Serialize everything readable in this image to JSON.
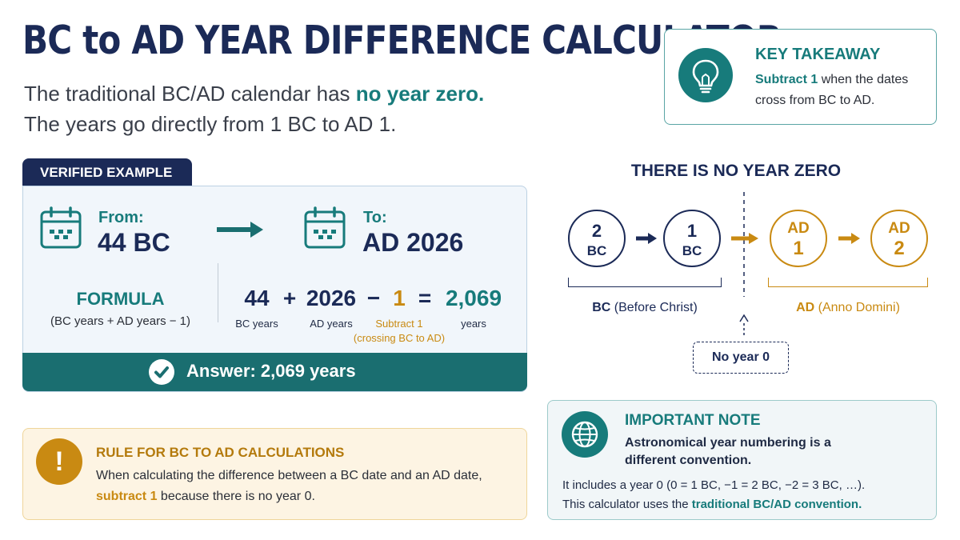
{
  "title": "BC to AD YEAR DIFFERENCE CALCULATOR",
  "intro": {
    "line1_prefix": "The traditional BC/AD calendar has ",
    "line1_highlight": "no year zero.",
    "line2": "The years go directly from 1 BC to AD 1."
  },
  "takeaway": {
    "icon": "lightbulb-icon",
    "title": "KEY TAKEAWAY",
    "highlight": "Subtract 1",
    "text": " when the dates cross from BC to AD."
  },
  "example": {
    "tab": "VERIFIED EXAMPLE",
    "from_label": "From:",
    "from_value": "44 BC",
    "to_label": "To:",
    "to_value": "AD 2026",
    "formula_title": "FORMULA",
    "formula_sub": "(BC years + AD years − 1)",
    "terms": [
      {
        "num": "44",
        "label": "BC years"
      },
      {
        "num": "2026",
        "label": "AD years"
      },
      {
        "num": "1",
        "label": "Subtract 1",
        "label2": "(crossing BC to AD)"
      },
      {
        "num": "2,069",
        "label": "years"
      }
    ],
    "ops": [
      "+",
      "−",
      "="
    ],
    "answer": "Answer: 2,069 years"
  },
  "rule": {
    "icon": "exclamation-icon",
    "title": "RULE FOR BC TO AD CALCULATIONS",
    "text": "When calculating the difference between a BC date and an AD date, ",
    "highlight": "subtract 1",
    "text2": " because there is no year 0."
  },
  "timeline": {
    "title": "THERE IS NO YEAR ZERO",
    "bc_years": [
      {
        "n": "2",
        "e": "BC"
      },
      {
        "n": "1",
        "e": "BC"
      }
    ],
    "ad_years": [
      {
        "e": "AD",
        "n": "1"
      },
      {
        "e": "AD",
        "n": "2"
      }
    ],
    "bc_label_bold": "BC",
    "bc_label": " (Before Christ)",
    "ad_label_bold": "AD",
    "ad_label": " (Anno Domini)",
    "no_year": "No year 0"
  },
  "note": {
    "icon": "globe-icon",
    "title": "IMPORTANT NOTE",
    "sub": "Astronomical year numbering is a different convention.",
    "text1": "It includes a year 0 (0 = 1 BC, −1 = 2 BC, −2 = 3 BC, …).",
    "text2_prefix": "This calculator uses the ",
    "text2_highlight": "traditional BC/AD convention."
  },
  "colors": {
    "navy": "#1b2a57",
    "teal": "#177b7b",
    "gold": "#c98a12"
  }
}
